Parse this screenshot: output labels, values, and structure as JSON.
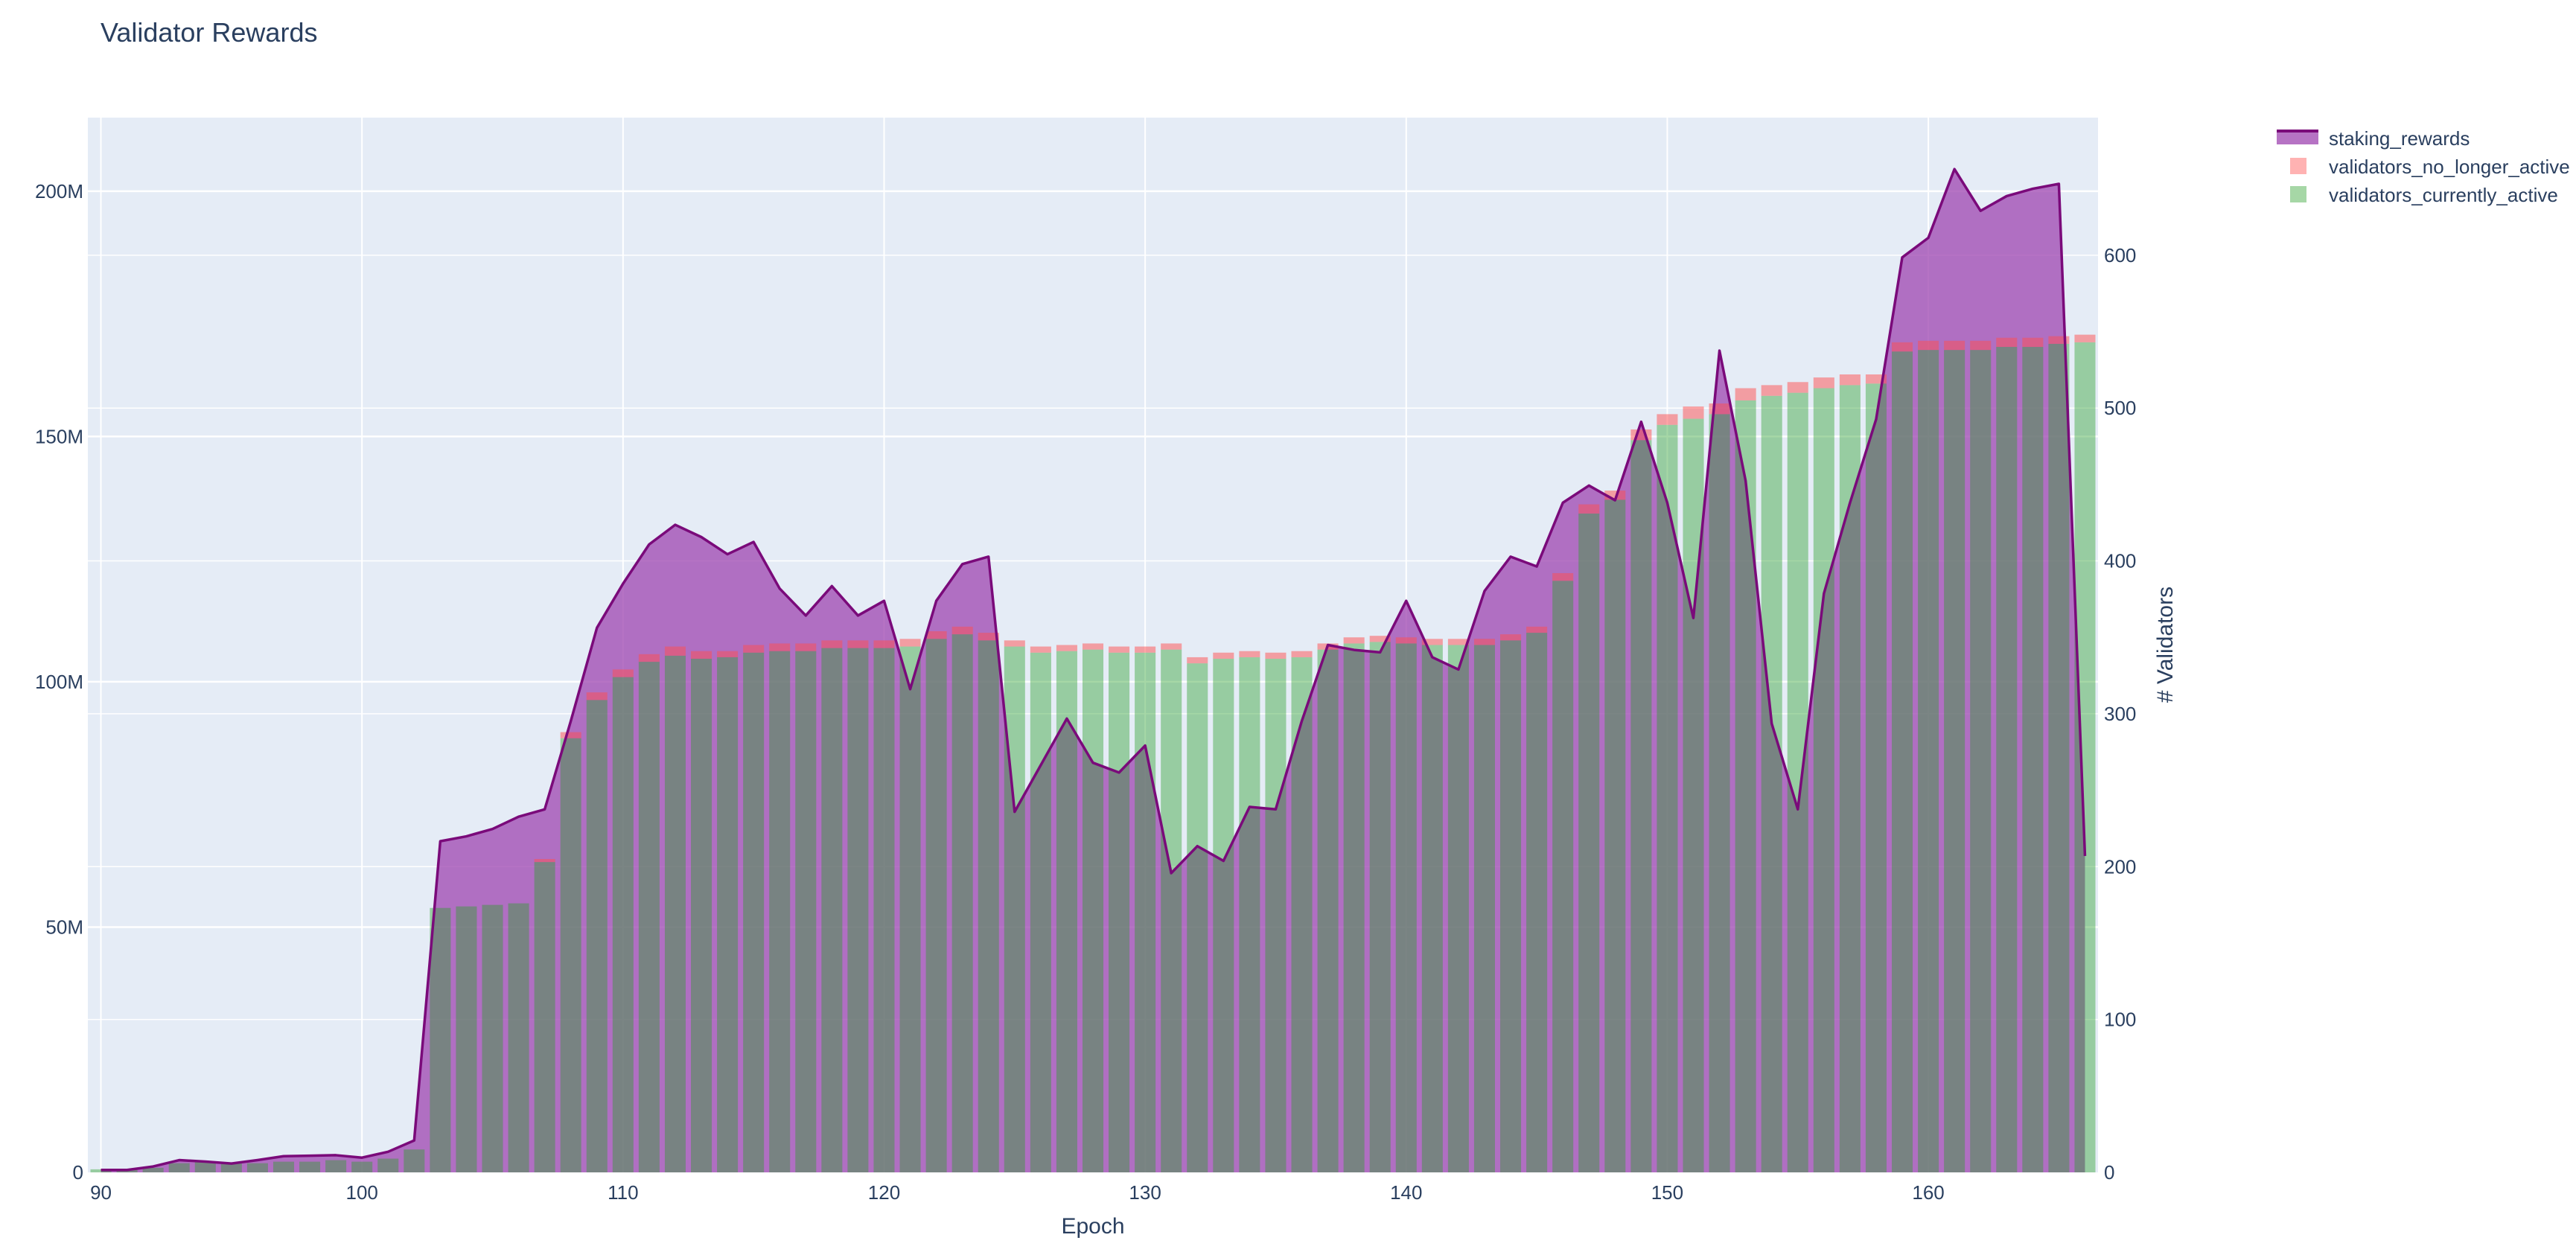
{
  "chart_data": {
    "type": "bar",
    "title": "Validator Rewards",
    "xlabel": "Epoch",
    "ylabel": "",
    "y2label": "# Validators",
    "xlim": [
      89.5,
      166.5
    ],
    "ylim": [
      0,
      215000000
    ],
    "y2lim": [
      0,
      690
    ],
    "x_ticks": [
      90,
      100,
      110,
      120,
      130,
      140,
      150,
      160
    ],
    "y_ticks": [
      0,
      50000000,
      100000000,
      150000000,
      200000000
    ],
    "y_tick_labels": [
      "0",
      "50M",
      "100M",
      "150M",
      "200M"
    ],
    "y2_ticks": [
      0,
      100,
      200,
      300,
      400,
      500,
      600
    ],
    "y2_tick_labels": [
      "0",
      "100",
      "200",
      "300",
      "400",
      "500",
      "600"
    ],
    "legend_position": "top-right",
    "x": [
      90,
      91,
      92,
      93,
      94,
      95,
      96,
      97,
      98,
      99,
      100,
      101,
      102,
      103,
      104,
      105,
      106,
      107,
      108,
      109,
      110,
      111,
      112,
      113,
      114,
      115,
      116,
      117,
      118,
      119,
      120,
      121,
      122,
      123,
      124,
      125,
      126,
      127,
      128,
      129,
      130,
      131,
      132,
      133,
      134,
      135,
      136,
      137,
      138,
      139,
      140,
      141,
      142,
      143,
      144,
      145,
      146,
      147,
      148,
      149,
      150,
      151,
      152,
      153,
      154,
      155,
      156,
      157,
      158,
      159,
      160,
      161,
      162,
      163,
      164,
      165,
      166
    ],
    "series": [
      {
        "name": "staking_rewards",
        "type": "area",
        "axis": "y",
        "color": "#800080",
        "values": [
          500000.0,
          500000.0,
          1200000.0,
          2500000.0,
          2200000.0,
          1800000.0,
          2500000.0,
          3300000.0,
          3400000.0,
          3500000.0,
          3000000.0,
          4200000.0,
          6500000.0,
          67500000.0,
          68500000.0,
          70000000.0,
          72500000.0,
          74000000.0,
          92000000.0,
          111000000.0,
          120000000.0,
          128000000.0,
          132000000.0,
          129500000.0,
          126000000.0,
          128500000.0,
          119000000.0,
          113500000.0,
          119500000.0,
          113500000.0,
          116500000.0,
          98500000.0,
          116500000.0,
          124000000.0,
          125500000.0,
          73500000.0,
          83000000.0,
          92500000.0,
          83500000.0,
          81500000.0,
          87000000.0,
          61000000.0,
          66500000.0,
          63500000.0,
          74500000.0,
          74000000.0,
          92000000.0,
          107500000.0,
          106500000.0,
          106000000.0,
          116500000.0,
          105000000.0,
          102500000.0,
          118500000.0,
          125500000.0,
          123500000.0,
          136500000.0,
          140000000.0,
          137000000.0,
          153000000.0,
          136500000.0,
          113000000.0,
          167500000.0,
          141000000.0,
          91500000.0,
          74000000.0,
          118000000.0,
          136500000.0,
          153500000.0,
          186500000.0,
          190500000.0,
          204500000.0,
          196000000.0,
          199000000.0,
          200500000.0,
          201500000.0,
          64500000.0
        ]
      },
      {
        "name": "validators_currently_active",
        "type": "bar",
        "axis": "y2",
        "color": "#2ca02c",
        "values": [
          2,
          2,
          3,
          6,
          7,
          6,
          6,
          7,
          7,
          8,
          7,
          9,
          15,
          173,
          174,
          175,
          176,
          203,
          284,
          309,
          324,
          334,
          338,
          336,
          337,
          340,
          341,
          341,
          343,
          343,
          343,
          344,
          349,
          352,
          348,
          344,
          340,
          341,
          342,
          340,
          340,
          342,
          333,
          336,
          337,
          336,
          337,
          342,
          346,
          347,
          346,
          345,
          345,
          345,
          348,
          353,
          387,
          431,
          440,
          479,
          489,
          493,
          496,
          505,
          508,
          510,
          513,
          515,
          516,
          537,
          538,
          538,
          538,
          540,
          540,
          542,
          543
        ]
      },
      {
        "name": "validators_no_longer_active",
        "type": "bar",
        "axis": "y2",
        "color": "#ff7f7f",
        "values": [
          0,
          0,
          0,
          0,
          0,
          0,
          0,
          0,
          0,
          0,
          0,
          0,
          0,
          0,
          0,
          0,
          0,
          2,
          4,
          5,
          5,
          5,
          6,
          5,
          4,
          5,
          5,
          5,
          5,
          5,
          5,
          5,
          5,
          5,
          5,
          4,
          4,
          4,
          4,
          4,
          4,
          4,
          4,
          4,
          4,
          4,
          4,
          4,
          4,
          4,
          4,
          4,
          4,
          4,
          4,
          4,
          5,
          6,
          6,
          7,
          7,
          8,
          7,
          8,
          7,
          7,
          7,
          7,
          6,
          6,
          6,
          6,
          6,
          6,
          6,
          5,
          5
        ]
      }
    ]
  }
}
